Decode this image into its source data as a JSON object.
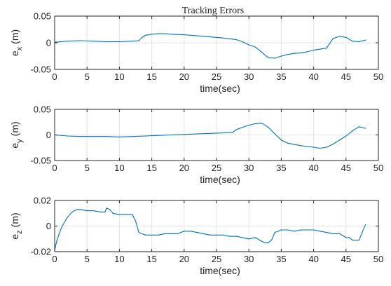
{
  "chart_data": [
    {
      "type": "line",
      "title": "Tracking Errors",
      "xlabel": "time(sec)",
      "ylabel": "e_x (m)",
      "ylabel_main": "e",
      "ylabel_sub": "x",
      "ylabel_unit": "(m)",
      "xlim": [
        0,
        50
      ],
      "ylim": [
        -0.05,
        0.05
      ],
      "xticks": [
        0,
        5,
        10,
        15,
        20,
        25,
        30,
        35,
        40,
        45,
        50
      ],
      "xtick_labels": [
        "0",
        "5",
        "10",
        "15",
        "20",
        "25",
        "30",
        "35",
        "40",
        "45",
        "50"
      ],
      "yticks": [
        -0.05,
        0,
        0.05
      ],
      "ytick_labels": [
        "-0.05",
        "0",
        "0.05"
      ],
      "grid": true,
      "series": [
        {
          "color": "#0072BD",
          "x": [
            0,
            1,
            2,
            4,
            6,
            8,
            10,
            12,
            13,
            13.5,
            14,
            15,
            16,
            17,
            18,
            20,
            22,
            24,
            26,
            28,
            29,
            30,
            31,
            32,
            33,
            34,
            35,
            36,
            37,
            38,
            39,
            40,
            41,
            42,
            43,
            44,
            45,
            46,
            47,
            48
          ],
          "y": [
            0.001,
            0.002,
            0.003,
            0.004,
            0.003,
            0.002,
            0.002,
            0.003,
            0.004,
            0.01,
            0.014,
            0.016,
            0.017,
            0.017,
            0.016,
            0.015,
            0.013,
            0.011,
            0.009,
            0.006,
            0.002,
            -0.004,
            -0.008,
            -0.018,
            -0.028,
            -0.029,
            -0.025,
            -0.022,
            -0.02,
            -0.019,
            -0.017,
            -0.014,
            -0.012,
            -0.01,
            0.008,
            0.012,
            0.01,
            0.003,
            0.002,
            0.005
          ]
        }
      ]
    },
    {
      "type": "line",
      "title": "",
      "xlabel": "time(sec)",
      "ylabel": "e_y (m)",
      "ylabel_main": "e",
      "ylabel_sub": "y",
      "ylabel_unit": "(m)",
      "xlim": [
        0,
        50
      ],
      "ylim": [
        -0.05,
        0.05
      ],
      "xticks": [
        0,
        5,
        10,
        15,
        20,
        25,
        30,
        35,
        40,
        45,
        50
      ],
      "xtick_labels": [
        "0",
        "5",
        "10",
        "15",
        "20",
        "25",
        "30",
        "35",
        "40",
        "45",
        "50"
      ],
      "yticks": [
        -0.05,
        0,
        0.05
      ],
      "ytick_labels": [
        "-0.05",
        "0",
        "0.05"
      ],
      "grid": true,
      "series": [
        {
          "color": "#0072BD",
          "x": [
            0,
            2,
            4,
            6,
            8,
            10,
            12,
            14,
            16,
            18,
            20,
            22,
            24,
            26,
            27.5,
            28,
            29,
            30,
            31,
            32,
            33,
            34,
            35,
            36,
            38,
            40,
            41,
            42,
            43,
            44,
            45,
            46,
            47,
            48
          ],
          "y": [
            0,
            -0.002,
            -0.003,
            -0.003,
            -0.003,
            -0.004,
            -0.003,
            -0.002,
            -0.001,
            0,
            0.001,
            0.002,
            0.003,
            0.004,
            0.005,
            0.01,
            0.015,
            0.019,
            0.022,
            0.023,
            0.015,
            0.002,
            -0.01,
            -0.016,
            -0.021,
            -0.024,
            -0.026,
            -0.024,
            -0.018,
            -0.01,
            -0.002,
            0.008,
            0.016,
            0.013
          ]
        }
      ]
    },
    {
      "type": "line",
      "title": "",
      "xlabel": "time(sec)",
      "ylabel": "e_z (m)",
      "ylabel_main": "e",
      "ylabel_sub": "z",
      "ylabel_unit": "(m)",
      "xlim": [
        0,
        50
      ],
      "ylim": [
        -0.02,
        0.02
      ],
      "xticks": [
        0,
        5,
        10,
        15,
        20,
        25,
        30,
        35,
        40,
        45,
        50
      ],
      "xtick_labels": [
        "0",
        "5",
        "10",
        "15",
        "20",
        "25",
        "30",
        "35",
        "40",
        "45",
        "50"
      ],
      "yticks": [
        -0.02,
        0,
        0.02
      ],
      "ytick_labels": [
        "-0.02",
        "0",
        "0.02"
      ],
      "grid": true,
      "series": [
        {
          "color": "#0072BD",
          "x": [
            0,
            0.3,
            0.7,
            1,
            1.5,
            2,
            2.5,
            3,
            3.5,
            4,
            5,
            6,
            7,
            7.8,
            8,
            8.5,
            9,
            10,
            11,
            12,
            12.5,
            13,
            14,
            15,
            16,
            17,
            18,
            19,
            20,
            20.5,
            21,
            22,
            23,
            24,
            25,
            26,
            27,
            28,
            29,
            30,
            31,
            32,
            32.5,
            33,
            33.5,
            34,
            35,
            36,
            37,
            38,
            39,
            40,
            41,
            42,
            43,
            44,
            45,
            45.5,
            46,
            47,
            47.5,
            48
          ],
          "y": [
            -0.019,
            -0.012,
            -0.006,
            -0.002,
            0.003,
            0.007,
            0.01,
            0.012,
            0.013,
            0.013,
            0.012,
            0.012,
            0.011,
            0.011,
            0.014,
            0.013,
            0.01,
            0.009,
            0.009,
            0.009,
            0.004,
            -0.005,
            -0.007,
            -0.007,
            -0.007,
            -0.006,
            -0.006,
            -0.006,
            -0.004,
            -0.004,
            -0.004,
            -0.005,
            -0.006,
            -0.007,
            -0.007,
            -0.007,
            -0.008,
            -0.008,
            -0.009,
            -0.01,
            -0.009,
            -0.012,
            -0.013,
            -0.013,
            -0.011,
            -0.005,
            -0.003,
            -0.003,
            -0.004,
            -0.003,
            -0.003,
            -0.003,
            -0.004,
            -0.005,
            -0.006,
            -0.006,
            -0.009,
            -0.009,
            -0.011,
            -0.011,
            -0.005,
            0.001
          ]
        }
      ]
    }
  ]
}
